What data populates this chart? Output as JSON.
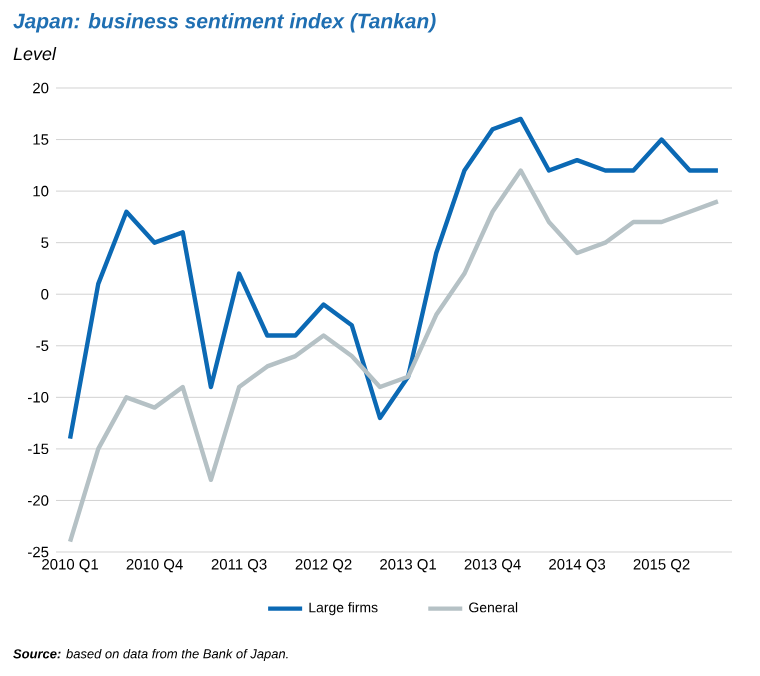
{
  "chart_data": {
    "type": "line",
    "title": "Japan: business sentiment index (Tankan)",
    "ylabel": "Level",
    "categories": [
      "2010 Q1",
      null,
      null,
      "2010 Q4",
      null,
      null,
      "2011 Q3",
      null,
      null,
      "2012 Q2",
      null,
      null,
      "2013 Q1",
      null,
      null,
      "2013 Q4",
      null,
      null,
      "2014 Q3",
      null,
      null,
      "2015 Q2",
      null,
      null
    ],
    "series": [
      {
        "name": "Large firms",
        "color": "#0b69b4",
        "values": [
          -14,
          1,
          8,
          5,
          6,
          -9,
          2,
          -4,
          -4,
          -1,
          -3,
          -12,
          -8,
          4,
          12,
          16,
          17,
          12,
          13,
          12,
          12,
          15,
          12,
          12
        ]
      },
      {
        "name": "General",
        "color": "#b5c1c5",
        "values": [
          -24,
          -15,
          -10,
          -11,
          -9,
          -18,
          -9,
          -7,
          -6,
          -4,
          -6,
          -9,
          -8,
          -2,
          2,
          8,
          12,
          7,
          4,
          5,
          7,
          7,
          8,
          9
        ]
      }
    ],
    "ylim": [
      -25,
      20
    ],
    "yticks": [
      -25,
      -20,
      -15,
      -10,
      -5,
      0,
      5,
      10,
      15,
      20
    ],
    "grid": "y",
    "legend": "bottom",
    "annotations": [
      "**Source:** based on data from the Bank of Japan."
    ]
  }
}
